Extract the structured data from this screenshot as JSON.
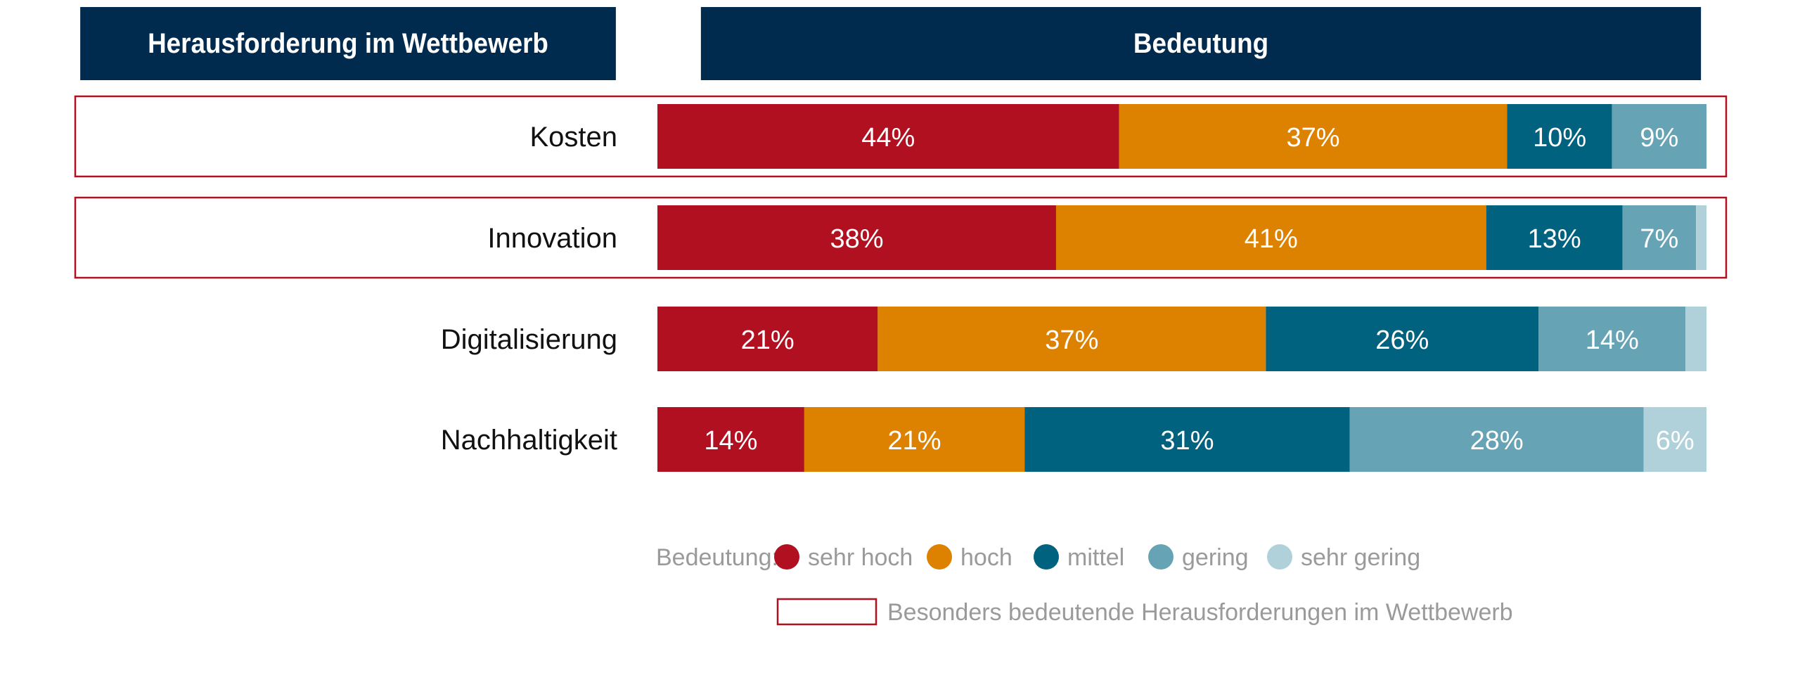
{
  "header": {
    "left_title": "Herausforderung im Wettbewerb",
    "right_title": "Bedeutung"
  },
  "chart_data": {
    "type": "bar",
    "orientation": "horizontal",
    "stacked": true,
    "categories": [
      "Kosten",
      "Innovation",
      "Digitalisierung",
      "Nachhaltigkeit"
    ],
    "series": [
      {
        "name": "sehr hoch",
        "color": "#b01020",
        "values": [
          44,
          38,
          21,
          14
        ],
        "labels": [
          "44%",
          "38%",
          "21%",
          "14%"
        ]
      },
      {
        "name": "hoch",
        "color": "#dd8200",
        "values": [
          37,
          41,
          37,
          21
        ],
        "labels": [
          "37%",
          "41%",
          "37%",
          "21%"
        ]
      },
      {
        "name": "mittel",
        "color": "#00627e",
        "values": [
          10,
          13,
          26,
          31
        ],
        "labels": [
          "10%",
          "13%",
          "26%",
          "31%"
        ]
      },
      {
        "name": "gering",
        "color": "#66a3b5",
        "values": [
          9,
          7,
          14,
          28
        ],
        "labels": [
          "9%",
          "7%",
          "14%",
          "28%"
        ]
      },
      {
        "name": "sehr gering",
        "color": "#b1d1da",
        "values": [
          0,
          1,
          2,
          6
        ],
        "labels": [
          "",
          "",
          "",
          "6%"
        ]
      }
    ],
    "highlighted": [
      "Kosten",
      "Innovation"
    ],
    "highlight_color": "#b01020",
    "legend": {
      "title": "Bedeutung:",
      "highlight_label": "Besonders bedeutende Herausforderungen im Wettbewerb",
      "placement": "bottom"
    }
  }
}
